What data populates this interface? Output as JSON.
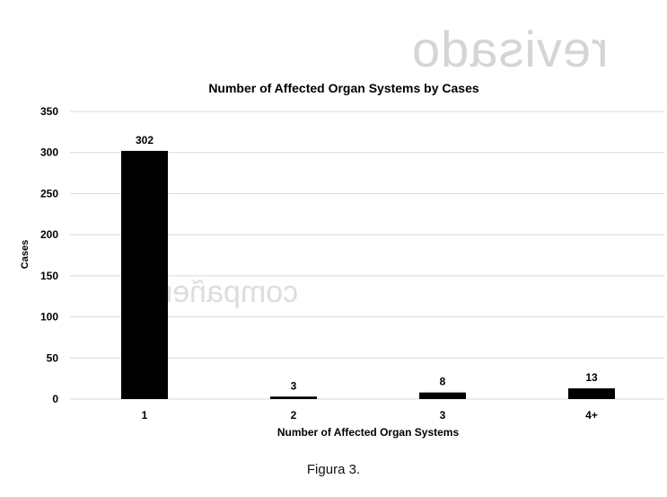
{
  "chart_data": {
    "type": "bar",
    "title": "Number of Affected Organ Systems by Cases",
    "xlabel": "Number of Affected Organ Systems",
    "ylabel": "Cases",
    "categories": [
      "1",
      "2",
      "3",
      "4+"
    ],
    "values": [
      302,
      3,
      8,
      13
    ],
    "data_labels": [
      "302",
      "3",
      "8",
      "13"
    ],
    "ylim": [
      0,
      350
    ],
    "yticks": [
      0,
      50,
      100,
      150,
      200,
      250,
      300,
      350
    ],
    "grid": true,
    "legend": "none",
    "bar_color": "#000000",
    "grid_color": "#d9d9d9"
  },
  "watermarks": {
    "top": "revisado",
    "middle": "compañero"
  },
  "caption": "Figura 3."
}
